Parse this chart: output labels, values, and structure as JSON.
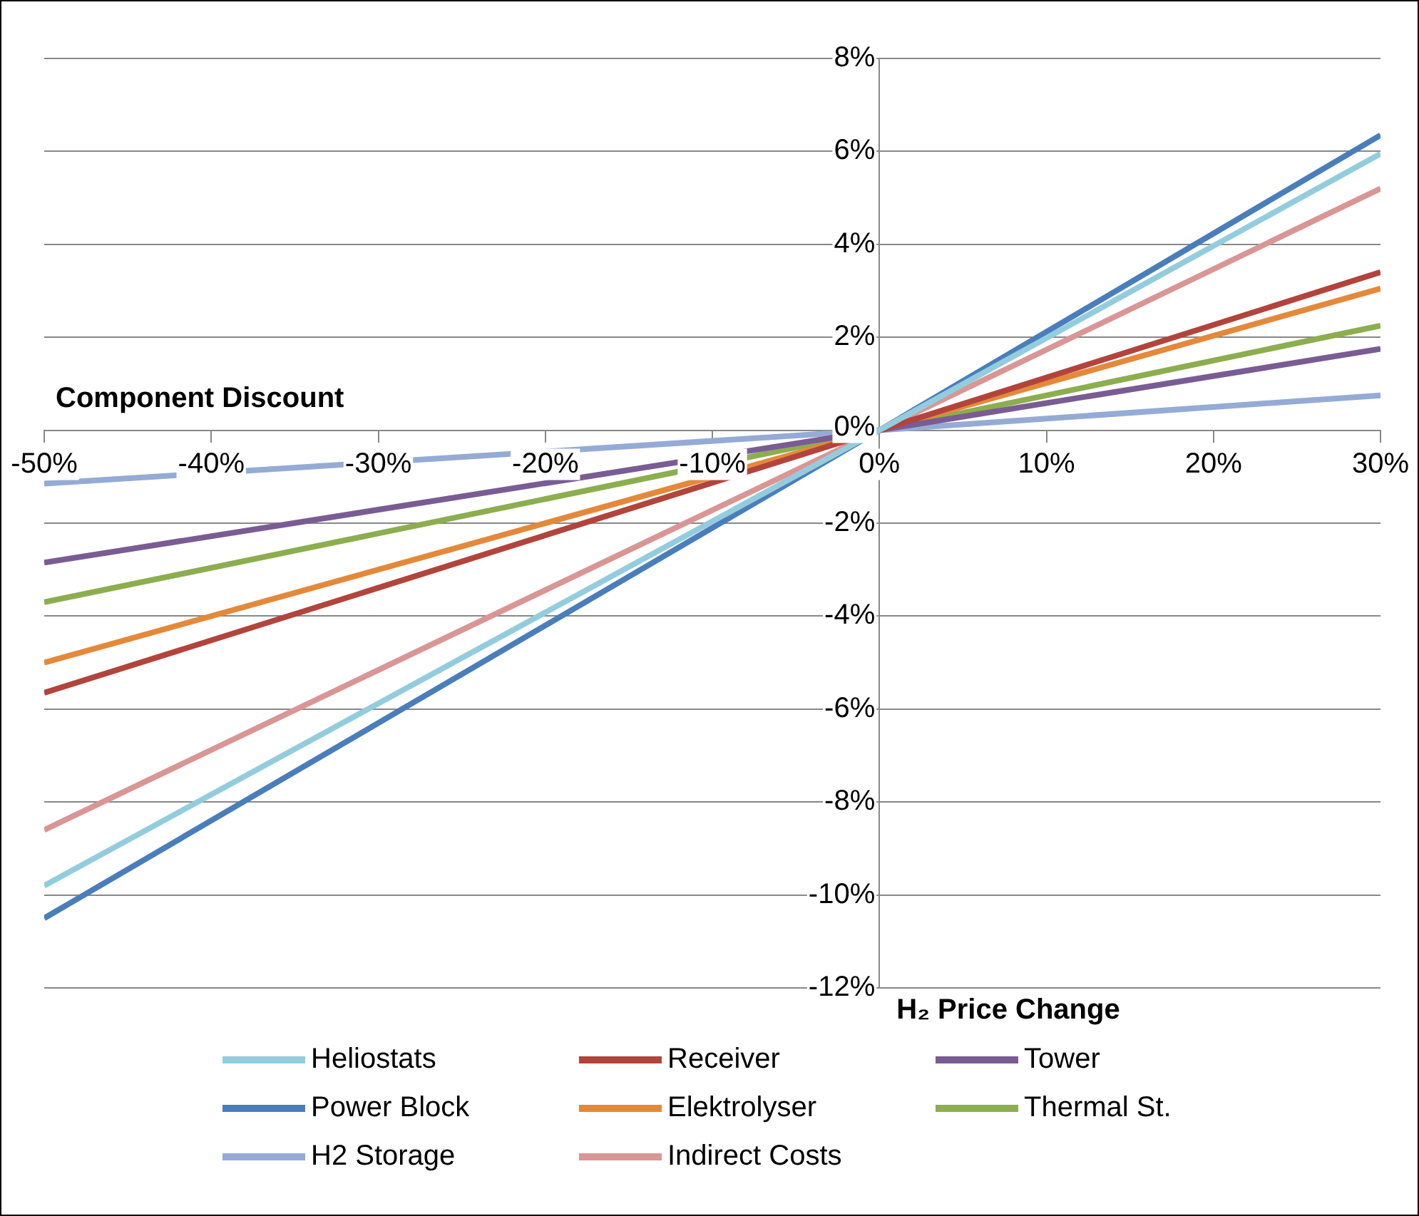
{
  "chart_data": {
    "type": "line",
    "xlabel": "H₂ Price Change",
    "ylabel": "Component Discount",
    "x": [
      -50,
      0,
      30
    ],
    "xlim": [
      -50,
      30
    ],
    "xticks": [
      {
        "value": -50,
        "label": "-50%"
      },
      {
        "value": -40,
        "label": "-40%"
      },
      {
        "value": -30,
        "label": "-30%"
      },
      {
        "value": -20,
        "label": "-20%"
      },
      {
        "value": -10,
        "label": "-10%"
      },
      {
        "value": 0,
        "label": "0%"
      },
      {
        "value": 10,
        "label": "10%"
      },
      {
        "value": 20,
        "label": "20%"
      },
      {
        "value": 30,
        "label": "30%"
      }
    ],
    "ylim": [
      -12,
      8
    ],
    "yticks": [
      {
        "value": -12,
        "label": "-12%"
      },
      {
        "value": -10,
        "label": "-10%"
      },
      {
        "value": -8,
        "label": "-8%"
      },
      {
        "value": -6,
        "label": "-6%"
      },
      {
        "value": -4,
        "label": "-4%"
      },
      {
        "value": -2,
        "label": "-2%"
      },
      {
        "value": 0,
        "label": "0%"
      },
      {
        "value": 2,
        "label": "2%"
      },
      {
        "value": 4,
        "label": "4%"
      },
      {
        "value": 6,
        "label": "6%"
      },
      {
        "value": 8,
        "label": "8%"
      }
    ],
    "grid": "y",
    "legend": "bottom",
    "marker": "none",
    "line_style": "solid",
    "series": [
      {
        "name": "Heliostats",
        "color": "#93cddd",
        "values": [
          -9.8,
          0,
          5.95
        ]
      },
      {
        "name": "Receiver",
        "color": "#b2443c",
        "values": [
          -5.65,
          0,
          3.4
        ]
      },
      {
        "name": "Tower",
        "color": "#7a5c94",
        "values": [
          -2.85,
          0,
          1.75
        ]
      },
      {
        "name": "Power Block",
        "color": "#4a7ebb",
        "values": [
          -10.5,
          0,
          6.35
        ]
      },
      {
        "name": "Elektrolyser",
        "color": "#e4893a",
        "values": [
          -5.0,
          0,
          3.05
        ]
      },
      {
        "name": "Thermal St.",
        "color": "#8cae4f",
        "values": [
          -3.7,
          0,
          2.25
        ]
      },
      {
        "name": "H2 Storage",
        "color": "#95abd6",
        "values": [
          -1.15,
          0,
          0.75
        ]
      },
      {
        "name": "Indirect Costs",
        "color": "#d99694",
        "values": [
          -8.6,
          0,
          5.2
        ]
      }
    ]
  }
}
